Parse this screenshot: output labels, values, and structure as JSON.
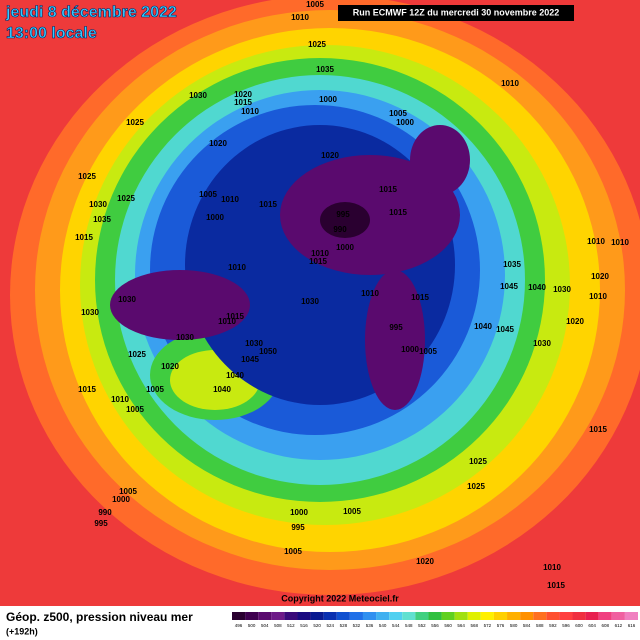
{
  "header": {
    "date": "jeudi 8 décembre 2022",
    "time": "13:00 locale",
    "run": "Run ECMWF 12Z du mercredi 30 novembre 2022"
  },
  "footer": {
    "title": "Géop. z500, pression niveau mer",
    "lead": "(+192h)",
    "copyright": "Copyright 2022 Meteociel.fr"
  },
  "colorbar": {
    "ticks": [
      496,
      500,
      504,
      508,
      512,
      516,
      520,
      524,
      528,
      532,
      536,
      540,
      544,
      548,
      552,
      556,
      560,
      564,
      568,
      572,
      576,
      580,
      584,
      588,
      592,
      596,
      600,
      604,
      608,
      612,
      616
    ],
    "colors": [
      "#2a0030",
      "#3f004f",
      "#5a0a6e",
      "#6e1a88",
      "#3a0a7a",
      "#1a0a80",
      "#0a1a90",
      "#0a30b0",
      "#1050d0",
      "#2070e8",
      "#3090f0",
      "#40b0f0",
      "#50d0f0",
      "#60e0d0",
      "#40d080",
      "#30c040",
      "#60d020",
      "#a0e010",
      "#e0f000",
      "#fff000",
      "#ffd000",
      "#ffb000",
      "#ff9000",
      "#ff7020",
      "#ff5030",
      "#ff4040",
      "#f03040",
      "#e82050",
      "#f04080",
      "#f060a0",
      "#f080c0"
    ]
  },
  "isobar_labels": [
    1005,
    1010,
    1025,
    1035,
    1010,
    1030,
    1020,
    1015,
    1000,
    1010,
    1025,
    1005,
    1000,
    1020,
    1020,
    1025,
    1005,
    1010,
    1025,
    1015,
    1015,
    1030,
    1000,
    995,
    1015,
    1035,
    990,
    1000,
    1010,
    1015,
    1010,
    1015,
    1035,
    1010,
    1010,
    1020,
    1040,
    1030,
    1045,
    1010,
    1030,
    1030,
    1010,
    1015,
    1030,
    995,
    1040,
    1045,
    1020,
    1015,
    1010,
    1030,
    1030,
    1050,
    1045,
    1000,
    1005,
    1030,
    1025,
    1020,
    1040,
    1040,
    1015,
    1005,
    1010,
    1005,
    1015,
    1025,
    1025,
    1005,
    1000,
    990,
    995,
    1000,
    1005,
    995,
    1005,
    1020,
    1010,
    1015
  ]
}
